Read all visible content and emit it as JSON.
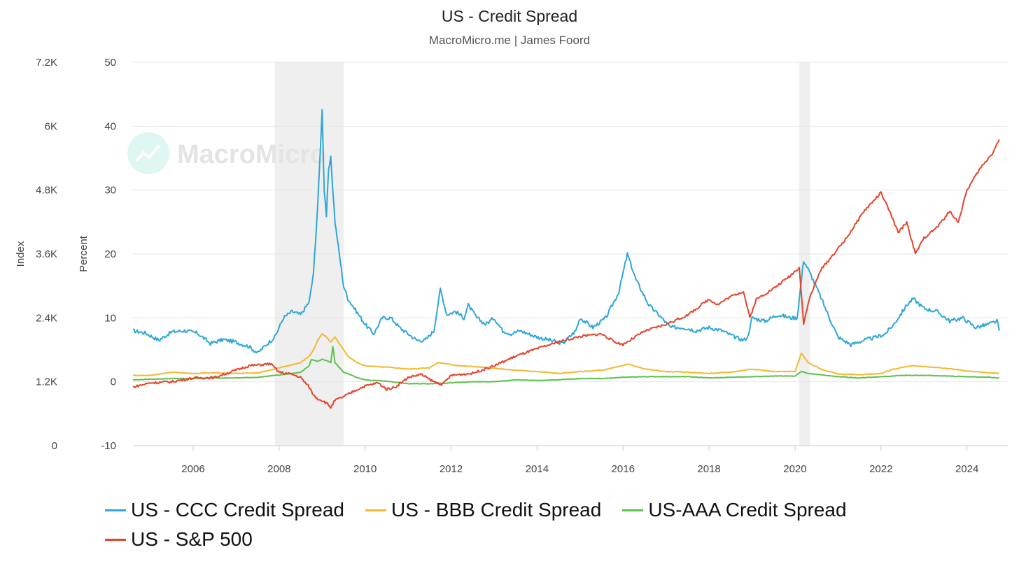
{
  "chart_data": {
    "type": "line",
    "title": "US - Credit Spread",
    "subtitle": "MacroMicro.me | James Foord",
    "watermark": "MacroMicro",
    "y_left": {
      "label": "Index",
      "range": [
        0,
        7200
      ],
      "ticks": [
        "0",
        "1.2K",
        "2.4K",
        "3.6K",
        "4.8K",
        "6K",
        "7.2K"
      ]
    },
    "y_right": {
      "label": "Percent",
      "range": [
        -10,
        50
      ],
      "ticks": [
        "-10",
        "0",
        "10",
        "20",
        "30",
        "40",
        "50"
      ]
    },
    "x": {
      "range": [
        2004.6,
        2024.95
      ],
      "ticks": [
        "2006",
        "2008",
        "2010",
        "2012",
        "2014",
        "2016",
        "2018",
        "2020",
        "2022",
        "2024"
      ]
    },
    "recession_bands": [
      [
        2007.9,
        2009.5
      ],
      [
        2020.1,
        2020.35
      ]
    ],
    "legend": [
      "US - CCC Credit Spread",
      "US - BBB Credit Spread",
      "US-AAA Credit Spread",
      "US - S&P 500"
    ],
    "colors": {
      "ccc": "#2ea7d6",
      "bbb": "#f5b82e",
      "aaa": "#5cc14d",
      "spx": "#e5432b",
      "grid": "#e6e6e6",
      "band": "#efefef"
    },
    "series": [
      {
        "name": "US - CCC Credit Spread",
        "axis": "percent",
        "color_key": "ccc",
        "points": [
          [
            2004.6,
            8
          ],
          [
            2004.9,
            7.6
          ],
          [
            2005.2,
            6.5
          ],
          [
            2005.5,
            7.8
          ],
          [
            2005.8,
            8
          ],
          [
            2006.1,
            7.6
          ],
          [
            2006.4,
            6
          ],
          [
            2006.7,
            6.6
          ],
          [
            2007.0,
            6.2
          ],
          [
            2007.3,
            5.5
          ],
          [
            2007.5,
            4.5
          ],
          [
            2007.7,
            5.8
          ],
          [
            2007.9,
            7
          ],
          [
            2008.1,
            10
          ],
          [
            2008.3,
            11
          ],
          [
            2008.5,
            10.5
          ],
          [
            2008.7,
            12.5
          ],
          [
            2008.8,
            17
          ],
          [
            2008.9,
            28
          ],
          [
            2008.95,
            35
          ],
          [
            2009.0,
            42.5
          ],
          [
            2009.05,
            30
          ],
          [
            2009.1,
            26
          ],
          [
            2009.15,
            33
          ],
          [
            2009.2,
            35
          ],
          [
            2009.3,
            25
          ],
          [
            2009.4,
            20
          ],
          [
            2009.5,
            15
          ],
          [
            2009.6,
            13
          ],
          [
            2009.8,
            11
          ],
          [
            2010.0,
            9
          ],
          [
            2010.2,
            7.5
          ],
          [
            2010.4,
            10
          ],
          [
            2010.6,
            10
          ],
          [
            2010.8,
            8.5
          ],
          [
            2011.0,
            7.5
          ],
          [
            2011.2,
            6.5
          ],
          [
            2011.4,
            6.5
          ],
          [
            2011.6,
            8
          ],
          [
            2011.75,
            14.5
          ],
          [
            2011.9,
            10.5
          ],
          [
            2012.1,
            11
          ],
          [
            2012.3,
            10
          ],
          [
            2012.4,
            12
          ],
          [
            2012.6,
            10
          ],
          [
            2012.8,
            9
          ],
          [
            2013.0,
            10
          ],
          [
            2013.2,
            8
          ],
          [
            2013.4,
            7.5
          ],
          [
            2013.6,
            8
          ],
          [
            2013.8,
            7.5
          ],
          [
            2014.0,
            7
          ],
          [
            2014.3,
            6.5
          ],
          [
            2014.6,
            6
          ],
          [
            2014.9,
            8
          ],
          [
            2015.0,
            10
          ],
          [
            2015.3,
            8.5
          ],
          [
            2015.6,
            10
          ],
          [
            2015.9,
            14
          ],
          [
            2016.1,
            20
          ],
          [
            2016.3,
            16
          ],
          [
            2016.6,
            12
          ],
          [
            2016.9,
            10
          ],
          [
            2017.1,
            8.5
          ],
          [
            2017.4,
            8.5
          ],
          [
            2017.7,
            8
          ],
          [
            2018.0,
            8.5
          ],
          [
            2018.3,
            8
          ],
          [
            2018.6,
            7
          ],
          [
            2018.8,
            6.5
          ],
          [
            2018.9,
            7
          ],
          [
            2019.0,
            10
          ],
          [
            2019.3,
            9.5
          ],
          [
            2019.6,
            10.5
          ],
          [
            2019.9,
            10
          ],
          [
            2020.05,
            10
          ],
          [
            2020.2,
            19
          ],
          [
            2020.35,
            17
          ],
          [
            2020.55,
            14
          ],
          [
            2020.8,
            10
          ],
          [
            2021.0,
            7
          ],
          [
            2021.3,
            5.8
          ],
          [
            2021.6,
            6.5
          ],
          [
            2021.9,
            7
          ],
          [
            2022.1,
            7.5
          ],
          [
            2022.3,
            9
          ],
          [
            2022.6,
            12
          ],
          [
            2022.75,
            13
          ],
          [
            2023.0,
            11.5
          ],
          [
            2023.3,
            11
          ],
          [
            2023.6,
            9.5
          ],
          [
            2023.9,
            10
          ],
          [
            2024.2,
            8.5
          ],
          [
            2024.5,
            9
          ],
          [
            2024.7,
            9.5
          ],
          [
            2024.75,
            8
          ]
        ]
      },
      {
        "name": "US - BBB Credit Spread",
        "axis": "percent",
        "color_key": "bbb",
        "points": [
          [
            2004.6,
            1
          ],
          [
            2005.0,
            1
          ],
          [
            2005.5,
            1.5
          ],
          [
            2006.0,
            1.3
          ],
          [
            2006.5,
            1.4
          ],
          [
            2007.0,
            1.3
          ],
          [
            2007.5,
            1.4
          ],
          [
            2007.9,
            2
          ],
          [
            2008.2,
            2.5
          ],
          [
            2008.5,
            3
          ],
          [
            2008.7,
            4
          ],
          [
            2008.8,
            5
          ],
          [
            2008.9,
            6.5
          ],
          [
            2009.0,
            7.5
          ],
          [
            2009.1,
            7
          ],
          [
            2009.2,
            6.2
          ],
          [
            2009.3,
            7
          ],
          [
            2009.4,
            6
          ],
          [
            2009.6,
            4
          ],
          [
            2009.8,
            3
          ],
          [
            2010.0,
            2.5
          ],
          [
            2010.5,
            2.3
          ],
          [
            2011.0,
            2
          ],
          [
            2011.5,
            2.2
          ],
          [
            2011.7,
            3
          ],
          [
            2011.9,
            2.8
          ],
          [
            2012.2,
            2.5
          ],
          [
            2012.5,
            2.4
          ],
          [
            2013.0,
            2.1
          ],
          [
            2013.5,
            1.8
          ],
          [
            2014.0,
            1.6
          ],
          [
            2014.5,
            1.3
          ],
          [
            2015.0,
            1.6
          ],
          [
            2015.5,
            1.8
          ],
          [
            2016.0,
            2.5
          ],
          [
            2016.1,
            2.8
          ],
          [
            2016.5,
            2
          ],
          [
            2017.0,
            1.6
          ],
          [
            2017.5,
            1.5
          ],
          [
            2018.0,
            1.3
          ],
          [
            2018.5,
            1.5
          ],
          [
            2019.0,
            2
          ],
          [
            2019.5,
            1.6
          ],
          [
            2020.0,
            1.6
          ],
          [
            2020.15,
            4.5
          ],
          [
            2020.3,
            3
          ],
          [
            2020.6,
            2
          ],
          [
            2021.0,
            1.2
          ],
          [
            2021.5,
            1.1
          ],
          [
            2022.0,
            1.3
          ],
          [
            2022.3,
            2
          ],
          [
            2022.7,
            2.5
          ],
          [
            2023.0,
            2.4
          ],
          [
            2023.5,
            2.1
          ],
          [
            2024.0,
            1.7
          ],
          [
            2024.5,
            1.4
          ],
          [
            2024.75,
            1.3
          ]
        ]
      },
      {
        "name": "US-AAA Credit Spread",
        "axis": "percent",
        "color_key": "aaa",
        "points": [
          [
            2004.6,
            0.3
          ],
          [
            2005.0,
            0.4
          ],
          [
            2005.5,
            0.5
          ],
          [
            2006.0,
            0.5
          ],
          [
            2006.5,
            0.6
          ],
          [
            2007.0,
            0.6
          ],
          [
            2007.5,
            0.7
          ],
          [
            2007.9,
            1
          ],
          [
            2008.2,
            1.2
          ],
          [
            2008.5,
            1.5
          ],
          [
            2008.7,
            2.5
          ],
          [
            2008.75,
            3.5
          ],
          [
            2008.9,
            3.2
          ],
          [
            2009.0,
            3.5
          ],
          [
            2009.1,
            3.3
          ],
          [
            2009.2,
            3
          ],
          [
            2009.25,
            5.5
          ],
          [
            2009.3,
            3
          ],
          [
            2009.5,
            1.5
          ],
          [
            2009.8,
            0.7
          ],
          [
            2010.0,
            0.3
          ],
          [
            2010.5,
            0.1
          ],
          [
            2011.0,
            -0.3
          ],
          [
            2011.5,
            -0.3
          ],
          [
            2011.9,
            -0.2
          ],
          [
            2012.5,
            0
          ],
          [
            2013.0,
            0
          ],
          [
            2013.5,
            0.3
          ],
          [
            2014.0,
            0.2
          ],
          [
            2014.5,
            0.3
          ],
          [
            2015.0,
            0.5
          ],
          [
            2015.5,
            0.5
          ],
          [
            2016.0,
            0.7
          ],
          [
            2016.5,
            0.8
          ],
          [
            2017.0,
            0.8
          ],
          [
            2017.5,
            0.8
          ],
          [
            2018.0,
            0.6
          ],
          [
            2018.5,
            0.7
          ],
          [
            2019.0,
            0.8
          ],
          [
            2019.5,
            0.9
          ],
          [
            2020.0,
            0.9
          ],
          [
            2020.15,
            1.6
          ],
          [
            2020.3,
            1.3
          ],
          [
            2020.6,
            1.1
          ],
          [
            2021.0,
            0.8
          ],
          [
            2021.5,
            0.6
          ],
          [
            2022.0,
            0.8
          ],
          [
            2022.5,
            1
          ],
          [
            2023.0,
            1
          ],
          [
            2023.5,
            0.9
          ],
          [
            2024.0,
            0.8
          ],
          [
            2024.5,
            0.7
          ],
          [
            2024.75,
            0.6
          ]
        ]
      },
      {
        "name": "US - S&P 500",
        "axis": "index",
        "color_key": "spx",
        "points": [
          [
            2004.6,
            1100
          ],
          [
            2005.0,
            1180
          ],
          [
            2005.5,
            1200
          ],
          [
            2006.0,
            1270
          ],
          [
            2006.5,
            1280
          ],
          [
            2007.0,
            1420
          ],
          [
            2007.3,
            1500
          ],
          [
            2007.6,
            1520
          ],
          [
            2007.8,
            1540
          ],
          [
            2008.0,
            1380
          ],
          [
            2008.3,
            1340
          ],
          [
            2008.5,
            1280
          ],
          [
            2008.7,
            1100
          ],
          [
            2008.8,
            950
          ],
          [
            2008.9,
            880
          ],
          [
            2009.0,
            850
          ],
          [
            2009.1,
            800
          ],
          [
            2009.2,
            720
          ],
          [
            2009.3,
            850
          ],
          [
            2009.5,
            920
          ],
          [
            2009.8,
            1050
          ],
          [
            2010.0,
            1120
          ],
          [
            2010.3,
            1180
          ],
          [
            2010.5,
            1060
          ],
          [
            2010.7,
            1100
          ],
          [
            2011.0,
            1280
          ],
          [
            2011.3,
            1340
          ],
          [
            2011.6,
            1200
          ],
          [
            2011.8,
            1150
          ],
          [
            2012.0,
            1320
          ],
          [
            2012.5,
            1360
          ],
          [
            2013.0,
            1500
          ],
          [
            2013.5,
            1680
          ],
          [
            2014.0,
            1820
          ],
          [
            2014.5,
            1950
          ],
          [
            2015.0,
            2050
          ],
          [
            2015.5,
            2100
          ],
          [
            2015.8,
            1950
          ],
          [
            2016.0,
            1900
          ],
          [
            2016.5,
            2150
          ],
          [
            2017.0,
            2280
          ],
          [
            2017.5,
            2450
          ],
          [
            2018.0,
            2750
          ],
          [
            2018.2,
            2650
          ],
          [
            2018.5,
            2800
          ],
          [
            2018.8,
            2900
          ],
          [
            2018.95,
            2400
          ],
          [
            2019.1,
            2750
          ],
          [
            2019.5,
            2950
          ],
          [
            2019.9,
            3200
          ],
          [
            2020.1,
            3350
          ],
          [
            2020.2,
            2300
          ],
          [
            2020.35,
            2800
          ],
          [
            2020.6,
            3300
          ],
          [
            2020.9,
            3600
          ],
          [
            2021.2,
            3900
          ],
          [
            2021.6,
            4400
          ],
          [
            2022.0,
            4750
          ],
          [
            2022.2,
            4400
          ],
          [
            2022.4,
            4000
          ],
          [
            2022.6,
            4200
          ],
          [
            2022.8,
            3600
          ],
          [
            2023.0,
            3900
          ],
          [
            2023.3,
            4100
          ],
          [
            2023.6,
            4400
          ],
          [
            2023.8,
            4200
          ],
          [
            2024.0,
            4800
          ],
          [
            2024.3,
            5200
          ],
          [
            2024.6,
            5500
          ],
          [
            2024.75,
            5750
          ]
        ]
      }
    ]
  }
}
